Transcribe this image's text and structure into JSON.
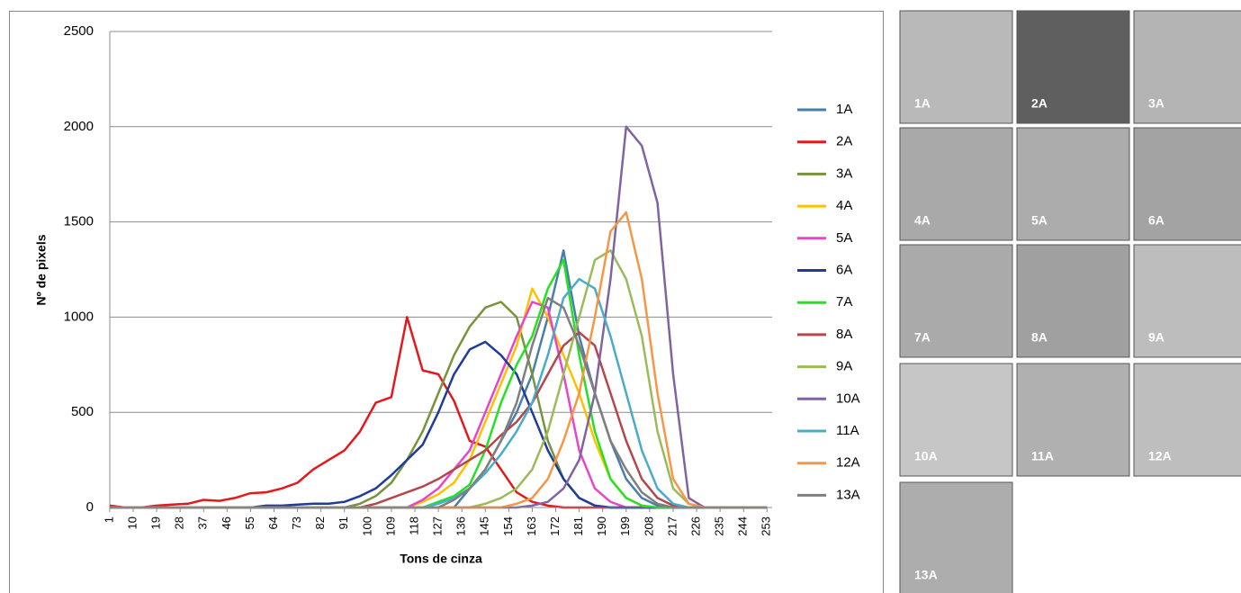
{
  "chart_data": {
    "type": "line",
    "xlabel": "Tons de cinza",
    "ylabel": "Nº de pixels",
    "x": [
      1,
      7,
      13,
      19,
      25,
      31,
      37,
      43,
      49,
      55,
      61,
      67,
      73,
      79,
      85,
      91,
      97,
      103,
      109,
      115,
      121,
      127,
      133,
      139,
      145,
      151,
      157,
      163,
      169,
      175,
      181,
      187,
      193,
      199,
      205,
      211,
      217,
      223,
      229,
      235,
      241,
      247,
      253
    ],
    "xlim": [
      0,
      256
    ],
    "ylim": [
      0,
      2500
    ],
    "xticks": [
      1,
      10,
      19,
      28,
      37,
      46,
      55,
      64,
      73,
      82,
      91,
      100,
      109,
      118,
      127,
      136,
      145,
      154,
      163,
      172,
      181,
      190,
      199,
      208,
      217,
      226,
      235,
      244,
      253
    ],
    "yticks": [
      0,
      500,
      1000,
      1500,
      2000,
      2500
    ],
    "grid": true,
    "legend": "right",
    "series": [
      {
        "name": "1A",
        "color": "#4a7eaa",
        "values": [
          0,
          0,
          0,
          0,
          0,
          0,
          0,
          0,
          0,
          0,
          0,
          0,
          0,
          0,
          0,
          0,
          0,
          0,
          0,
          0,
          0,
          0,
          0,
          100,
          200,
          350,
          500,
          700,
          1000,
          1350,
          900,
          600,
          350,
          150,
          50,
          10,
          0,
          0,
          0,
          0,
          0,
          0,
          0
        ]
      },
      {
        "name": "2A",
        "color": "#e3191c",
        "values": [
          10,
          0,
          0,
          10,
          15,
          20,
          40,
          35,
          50,
          75,
          80,
          100,
          130,
          200,
          250,
          300,
          400,
          550,
          580,
          1000,
          720,
          700,
          560,
          350,
          320,
          200,
          80,
          30,
          10,
          0,
          0,
          0,
          0,
          0,
          0,
          0,
          0,
          0,
          0,
          0,
          0,
          0,
          0
        ]
      },
      {
        "name": "3A",
        "color": "#77933c",
        "values": [
          0,
          0,
          0,
          0,
          0,
          0,
          0,
          0,
          0,
          0,
          0,
          0,
          0,
          0,
          0,
          0,
          20,
          60,
          130,
          250,
          400,
          600,
          800,
          950,
          1050,
          1080,
          1000,
          700,
          350,
          150,
          50,
          10,
          0,
          0,
          0,
          0,
          0,
          0,
          0,
          0,
          0,
          0,
          0
        ]
      },
      {
        "name": "4A",
        "color": "#ffc000",
        "values": [
          0,
          0,
          0,
          0,
          0,
          0,
          0,
          0,
          0,
          0,
          0,
          0,
          0,
          0,
          0,
          0,
          0,
          0,
          0,
          0,
          30,
          70,
          130,
          250,
          450,
          650,
          850,
          1150,
          1000,
          800,
          600,
          350,
          150,
          50,
          10,
          0,
          0,
          0,
          0,
          0,
          0,
          0,
          0
        ]
      },
      {
        "name": "5A",
        "color": "#e845c8",
        "values": [
          0,
          0,
          0,
          0,
          0,
          0,
          0,
          0,
          0,
          0,
          0,
          0,
          0,
          0,
          0,
          0,
          0,
          0,
          0,
          0,
          40,
          100,
          200,
          300,
          500,
          700,
          900,
          1080,
          1050,
          700,
          300,
          100,
          30,
          0,
          0,
          0,
          0,
          0,
          0,
          0,
          0,
          0,
          0
        ]
      },
      {
        "name": "6A",
        "color": "#1f3c99",
        "values": [
          0,
          0,
          0,
          0,
          0,
          0,
          0,
          0,
          0,
          0,
          10,
          10,
          15,
          20,
          20,
          30,
          60,
          100,
          170,
          250,
          330,
          500,
          700,
          830,
          870,
          800,
          700,
          500,
          300,
          150,
          50,
          10,
          0,
          0,
          0,
          0,
          0,
          0,
          0,
          0,
          0,
          0,
          0
        ]
      },
      {
        "name": "7A",
        "color": "#22e222",
        "values": [
          0,
          0,
          0,
          0,
          0,
          0,
          0,
          0,
          0,
          0,
          0,
          0,
          0,
          0,
          0,
          0,
          0,
          0,
          0,
          0,
          0,
          30,
          60,
          120,
          300,
          550,
          750,
          900,
          1150,
          1300,
          800,
          400,
          150,
          50,
          10,
          0,
          0,
          0,
          0,
          0,
          0,
          0,
          0
        ]
      },
      {
        "name": "8A",
        "color": "#b3474a",
        "values": [
          0,
          0,
          0,
          0,
          0,
          0,
          0,
          0,
          0,
          0,
          0,
          0,
          0,
          0,
          0,
          0,
          0,
          20,
          50,
          80,
          110,
          150,
          200,
          250,
          300,
          380,
          450,
          550,
          700,
          850,
          920,
          850,
          600,
          350,
          150,
          50,
          10,
          0,
          0,
          0,
          0,
          0,
          0
        ]
      },
      {
        "name": "9A",
        "color": "#9bbb59",
        "values": [
          0,
          0,
          0,
          0,
          0,
          0,
          0,
          0,
          0,
          0,
          0,
          0,
          0,
          0,
          0,
          0,
          0,
          0,
          0,
          0,
          0,
          0,
          0,
          0,
          20,
          50,
          100,
          200,
          400,
          700,
          1000,
          1300,
          1350,
          1200,
          900,
          400,
          100,
          20,
          0,
          0,
          0,
          0,
          0
        ]
      },
      {
        "name": "10A",
        "color": "#8064a2",
        "values": [
          0,
          0,
          0,
          0,
          0,
          0,
          0,
          0,
          0,
          0,
          0,
          0,
          0,
          0,
          0,
          0,
          0,
          0,
          0,
          0,
          0,
          0,
          0,
          0,
          0,
          0,
          0,
          10,
          30,
          100,
          250,
          600,
          1200,
          2000,
          1900,
          1600,
          700,
          50,
          0,
          0,
          0,
          0,
          0
        ]
      },
      {
        "name": "11A",
        "color": "#4bacc6",
        "values": [
          0,
          0,
          0,
          0,
          0,
          0,
          0,
          0,
          0,
          0,
          0,
          0,
          0,
          0,
          0,
          0,
          0,
          0,
          0,
          0,
          0,
          20,
          50,
          100,
          180,
          280,
          400,
          550,
          800,
          1100,
          1200,
          1150,
          900,
          600,
          300,
          100,
          20,
          0,
          0,
          0,
          0,
          0,
          0
        ]
      },
      {
        "name": "12A",
        "color": "#f79646",
        "values": [
          0,
          0,
          0,
          0,
          0,
          0,
          0,
          0,
          0,
          0,
          0,
          0,
          0,
          0,
          0,
          0,
          0,
          0,
          0,
          0,
          0,
          0,
          0,
          0,
          0,
          0,
          20,
          50,
          150,
          350,
          600,
          1000,
          1450,
          1550,
          1200,
          600,
          150,
          20,
          0,
          0,
          0,
          0,
          0
        ]
      },
      {
        "name": "13A",
        "color": "#7f7f7f",
        "values": [
          0,
          0,
          0,
          0,
          0,
          0,
          0,
          0,
          0,
          0,
          0,
          0,
          0,
          0,
          0,
          0,
          0,
          0,
          0,
          0,
          0,
          0,
          40,
          100,
          200,
          350,
          550,
          850,
          1100,
          1050,
          850,
          600,
          350,
          200,
          80,
          20,
          0,
          0,
          0,
          0,
          0,
          0,
          0
        ]
      }
    ]
  },
  "thumbnails": [
    "1A",
    "2A",
    "3A",
    "4A",
    "5A",
    "6A",
    "7A",
    "8A",
    "9A",
    "10A",
    "11A",
    "12A",
    "13A"
  ]
}
